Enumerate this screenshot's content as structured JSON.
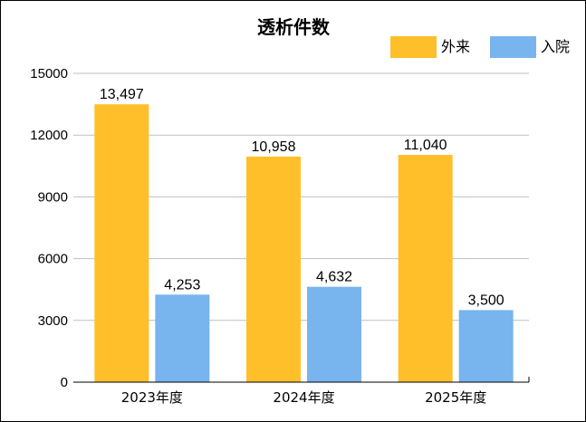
{
  "chart_data": {
    "type": "bar",
    "title": "透析件数",
    "categories": [
      "2023年度",
      "2024年度",
      "2025年度"
    ],
    "series": [
      {
        "name": "外来",
        "color": "#FFBF2A",
        "values": [
          13497,
          10958,
          11040
        ],
        "labels": [
          "13,497",
          "10,958",
          "11,040"
        ]
      },
      {
        "name": "入院",
        "color": "#78B4EE",
        "values": [
          4253,
          4632,
          3500
        ],
        "labels": [
          "4,253",
          "4,632",
          "3,500"
        ]
      }
    ],
    "yticks": [
      "0",
      "3000",
      "6000",
      "9000",
      "12000",
      "15000"
    ],
    "ylim": [
      0,
      15000
    ],
    "grid": true,
    "legend_position": "top-right"
  }
}
